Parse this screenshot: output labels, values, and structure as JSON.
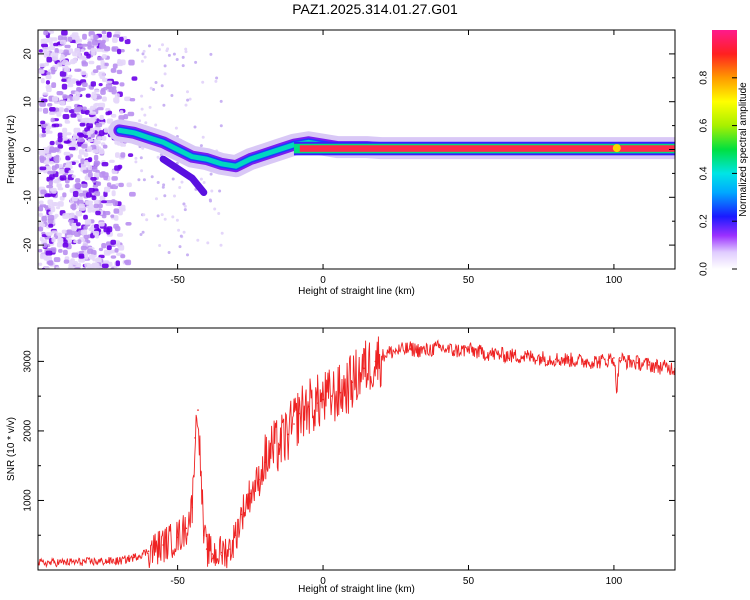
{
  "page_title": "PAZ1.2025.314.01.27.G01",
  "chart_data": [
    {
      "type": "heatmap",
      "title": "PAZ1.2025.314.01.27.G01",
      "xlabel": "Height of straight line (km)",
      "ylabel": "Frequency (Hz)",
      "xlim": [
        -98,
        121
      ],
      "ylim": [
        -25,
        25
      ],
      "xticks": [
        -50,
        0,
        50,
        100
      ],
      "xtick_labels": [
        "-50",
        "0",
        "50",
        "100"
      ],
      "yticks": [
        -20,
        -10,
        0,
        10,
        20
      ],
      "ytick_labels": [
        "-20",
        "-10",
        "0",
        "10",
        "20"
      ],
      "colorbar": {
        "label": "Normalized spectral amplitude",
        "range": [
          0,
          1
        ],
        "ticks": [
          0,
          0.2,
          0.4,
          0.6,
          0.8
        ],
        "tick_labels": [
          "0.0",
          "0.2",
          "0.4",
          "0.6",
          "0.8"
        ]
      },
      "dominant_frequency_trace": {
        "x": [
          -70,
          -65,
          -60,
          -55,
          -50,
          -45,
          -40,
          -35,
          -30,
          -25,
          -20,
          -15,
          -10,
          -5,
          0,
          5,
          10,
          15,
          20,
          121
        ],
        "y": [
          4,
          3.5,
          2.5,
          1.5,
          0,
          -1.5,
          -2,
          -3,
          -3.5,
          -2,
          -1,
          0,
          1,
          1.5,
          1,
          0.5,
          0.5,
          0.5,
          0.3,
          0.3
        ]
      },
      "noise_region_x": [
        -98,
        -65
      ]
    },
    {
      "type": "line",
      "xlabel": "Height of straight line (km)",
      "ylabel": "SNR (10 * v/v)",
      "xlim": [
        -98,
        121
      ],
      "ylim": [
        0,
        3480
      ],
      "xticks": [
        -50,
        0,
        50,
        100
      ],
      "xtick_labels": [
        "-50",
        "0",
        "50",
        "100"
      ],
      "yticks": [
        1000,
        2000,
        3000
      ],
      "ytick_labels": [
        "1000",
        "2000",
        "3000"
      ],
      "series": [
        {
          "name": "SNR",
          "color": "#ee2222",
          "x": [
            -98,
            -90,
            -80,
            -70,
            -65,
            -60,
            -55,
            -50,
            -47,
            -45,
            -44,
            -43,
            -42,
            -41,
            -40,
            -38,
            -35,
            -32,
            -30,
            -28,
            -25,
            -22,
            -20,
            -18,
            -15,
            -12,
            -10,
            -8,
            -5,
            -2,
            0,
            3,
            6,
            10,
            14,
            18,
            22,
            25,
            30,
            35,
            40,
            45,
            50,
            55,
            60,
            65,
            70,
            75,
            80,
            85,
            90,
            95,
            98,
            100,
            101,
            102,
            104,
            108,
            112,
            116,
            121
          ],
          "y": [
            100,
            110,
            120,
            130,
            180,
            270,
            360,
            470,
            600,
            900,
            1900,
            2300,
            1400,
            500,
            300,
            230,
            250,
            300,
            500,
            800,
            1100,
            1300,
            1550,
            1700,
            1800,
            1950,
            2100,
            2250,
            2350,
            2400,
            2450,
            2500,
            2550,
            2700,
            2900,
            3000,
            3120,
            3150,
            3180,
            3150,
            3200,
            3150,
            3170,
            3120,
            3100,
            3080,
            3070,
            3050,
            3030,
            3020,
            3000,
            3000,
            3020,
            3050,
            2600,
            3050,
            3000,
            2980,
            2950,
            2920,
            2900
          ]
        }
      ]
    }
  ]
}
